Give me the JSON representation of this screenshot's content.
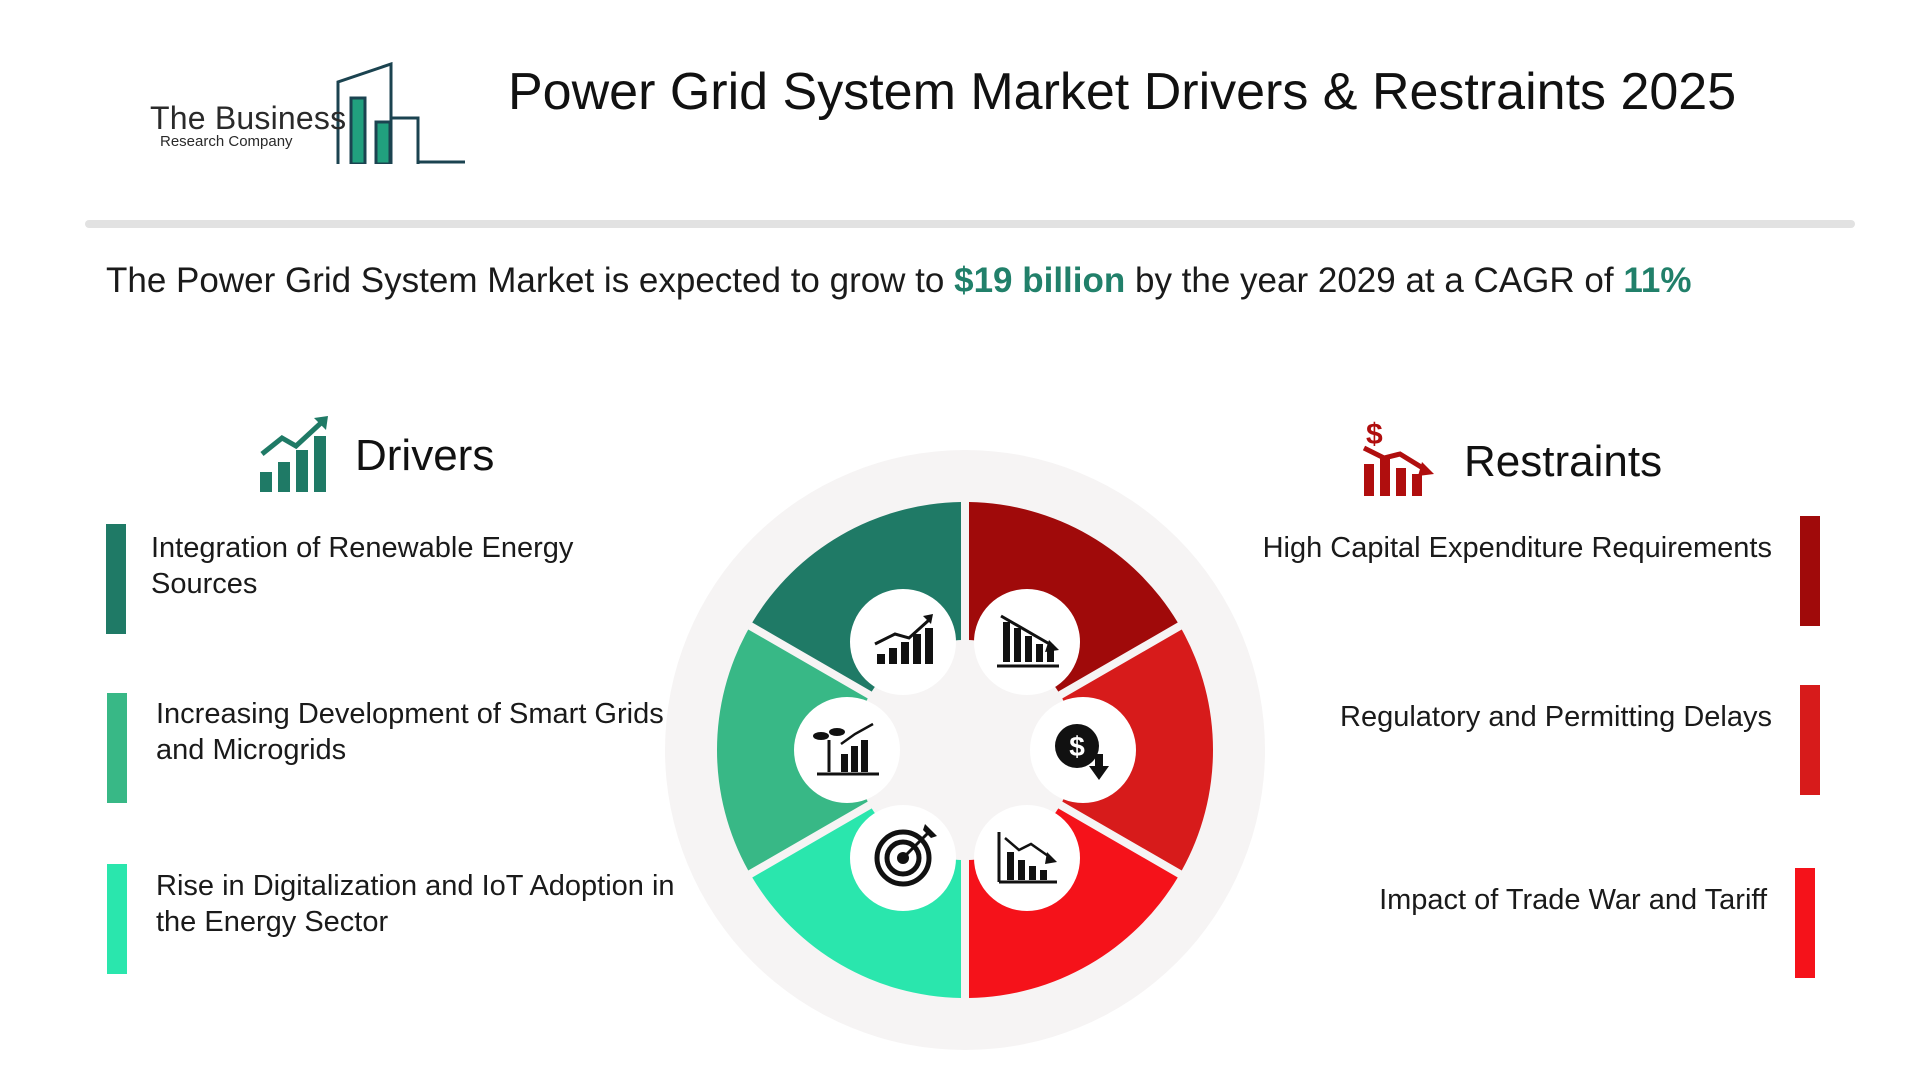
{
  "header": {
    "logo": {
      "line1": "The Business",
      "line2": "Research Company"
    },
    "title": "Power Grid System Market Drivers & Restraints 2025"
  },
  "headline": {
    "prefix": "The Power Grid System Market is expected to grow to ",
    "value": "$19 billion",
    "middle": " by the year 2029 at a CAGR of  ",
    "cagr": "11%"
  },
  "drivers": {
    "title": "Drivers",
    "icon": "growth-chart-icon",
    "items": [
      {
        "label": "Integration of Renewable Energy Sources",
        "color": "#1f7a66"
      },
      {
        "label": "Increasing Development of Smart Grids and Microgrids",
        "color": "#38b886"
      },
      {
        "label": "Rise in Digitalization and IoT Adoption in the Energy Sector",
        "color": "#2ae6ad"
      }
    ]
  },
  "restraints": {
    "title": "Restraints",
    "icon": "declining-dollar-chart-icon",
    "items": [
      {
        "label": "High Capital Expenditure Requirements",
        "color": "#a00a0a"
      },
      {
        "label": "Regulatory and Permitting Delays",
        "color": "#d71b1b"
      },
      {
        "label": "Impact of Trade War and Tariff",
        "color": "#f5121a"
      }
    ]
  },
  "wheel": {
    "segments": [
      {
        "color": "#1f7a66",
        "icon": "rising-bar-chart-icon"
      },
      {
        "color": "#38b886",
        "icon": "plant-growth-chart-icon"
      },
      {
        "color": "#2ae6ad",
        "icon": "target-icon"
      },
      {
        "color": "#a00a0a",
        "icon": "declining-bar-chart-icon"
      },
      {
        "color": "#d71b1b",
        "icon": "dollar-down-icon"
      },
      {
        "color": "#f5121a",
        "icon": "declining-line-chart-icon"
      }
    ]
  }
}
